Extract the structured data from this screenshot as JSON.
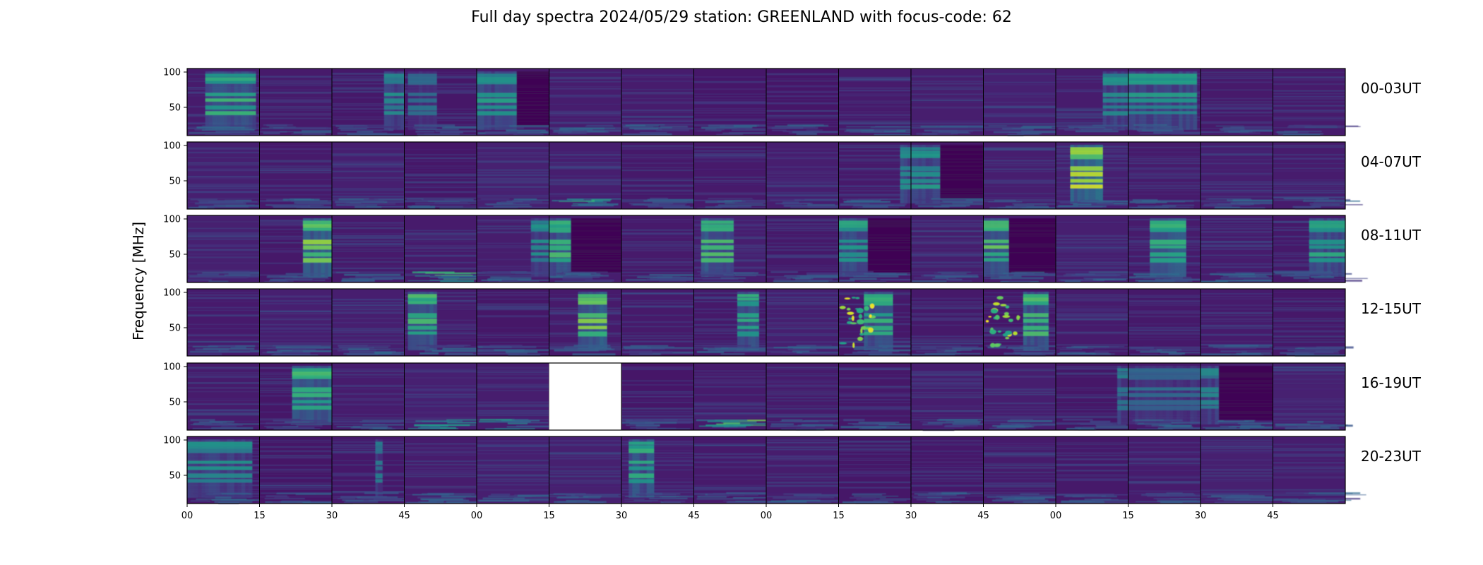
{
  "chart_data": {
    "type": "heatmap",
    "title": "Full day spectra 2024/05/29 station: GREENLAND with focus-code: 62",
    "ylabel": "Frequency [MHz]",
    "xlabel": "",
    "colormap": "viridis",
    "y_ticks": [
      100,
      50
    ],
    "ylim": [
      10,
      105
    ],
    "x_tick_labels": [
      "00",
      "15",
      "30",
      "45",
      "00",
      "15",
      "30",
      "45",
      "00",
      "15",
      "30",
      "45",
      "00",
      "15",
      "30",
      "45"
    ],
    "rows": [
      {
        "label": "00-03UT",
        "panels": [
          {
            "b": [
              0.25,
              0.95,
              0.7
            ]
          },
          {},
          {
            "b": [
              0.72,
              1.0,
              0.55
            ]
          },
          {
            "b": [
              0.05,
              0.45,
              0.4
            ]
          },
          {
            "b": [
              0.0,
              0.55,
              0.6
            ],
            "d": [
              0.55,
              1.0
            ]
          },
          {},
          {},
          {},
          {},
          {},
          {},
          {},
          {
            "b": [
              0.65,
              1.0,
              0.55
            ]
          },
          {
            "b": [
              0.0,
              0.95,
              0.6
            ]
          },
          {},
          {}
        ]
      },
      {
        "label": "04-07UT",
        "panels": [
          {},
          {},
          {},
          {},
          {},
          {
            "low": 0.7
          },
          {},
          {},
          {},
          {
            "b": [
              0.85,
              1.0,
              0.6
            ]
          },
          {
            "b": [
              0.0,
              0.4,
              0.6
            ],
            "d": [
              0.4,
              1.0
            ]
          },
          {},
          {
            "b": [
              0.2,
              0.65,
              0.95
            ]
          },
          {},
          {},
          {}
        ]
      },
      {
        "label": "08-11UT",
        "panels": [
          {},
          {
            "b": [
              0.6,
              1.0,
              0.85
            ]
          },
          {},
          {
            "low": 0.75
          },
          {
            "b": [
              0.75,
              1.0,
              0.55
            ]
          },
          {
            "b": [
              0.0,
              0.3,
              0.75
            ],
            "d": [
              0.3,
              1.0
            ]
          },
          {},
          {
            "b": [
              0.1,
              0.55,
              0.75
            ]
          },
          {},
          {
            "b": [
              0.0,
              0.4,
              0.65
            ],
            "d": [
              0.4,
              1.0
            ]
          },
          {},
          {
            "b": [
              0.0,
              0.35,
              0.8
            ],
            "d": [
              0.35,
              1.0
            ]
          },
          {},
          {
            "b": [
              0.3,
              0.8,
              0.75
            ]
          },
          {},
          {
            "b": [
              0.5,
              1.0,
              0.65
            ]
          }
        ]
      },
      {
        "label": "12-15UT",
        "panels": [
          {},
          {},
          {},
          {
            "b": [
              0.05,
              0.45,
              0.75
            ]
          },
          {},
          {
            "b": [
              0.4,
              0.8,
              0.85
            ]
          },
          {},
          {
            "b": [
              0.6,
              0.9,
              0.7
            ]
          },
          {},
          {
            "b": [
              0.35,
              0.75,
              0.7
            ],
            "burst": true
          },
          {
            "d": [
              0.0,
              0.0
            ]
          },
          {
            "b": [
              0.55,
              0.9,
              0.75
            ],
            "burst": true
          },
          {},
          {},
          {},
          {}
        ]
      },
      {
        "label": "16-19UT",
        "panels": [
          {},
          {
            "b": [
              0.45,
              1.0,
              0.75
            ]
          },
          {},
          {
            "low": 0.6
          },
          {
            "low": 0.6
          },
          {
            "empty": true
          },
          {},
          {
            "low": 0.8
          },
          {},
          {},
          {},
          {},
          {
            "b": [
              0.85,
              1.0,
              0.5
            ]
          },
          {
            "b": [
              0.0,
              1.0,
              0.4
            ]
          },
          {
            "b": [
              0.0,
              0.25,
              0.5
            ],
            "d": [
              0.25,
              1.0
            ]
          },
          {}
        ]
      },
      {
        "label": "20-23UT",
        "panels": [
          {
            "b": [
              0.0,
              0.9,
              0.55
            ]
          },
          {},
          {
            "b": [
              0.6,
              0.7,
              0.45
            ]
          },
          {},
          {},
          {},
          {
            "b": [
              0.1,
              0.45,
              0.7
            ]
          },
          {},
          {},
          {},
          {},
          {},
          {},
          {},
          {},
          {}
        ]
      }
    ]
  }
}
